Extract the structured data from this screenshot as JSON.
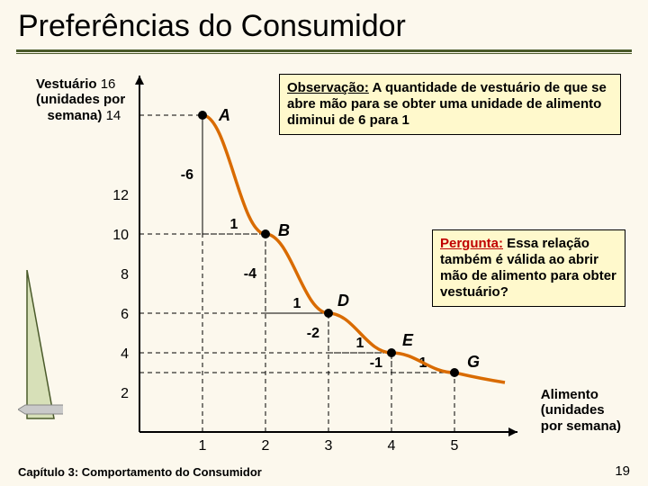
{
  "title": "Preferências do Consumidor",
  "ylabel_lines": [
    "Vestuário",
    "(unidades por",
    "semana)"
  ],
  "xlabel_lines": [
    "Alimento",
    "(unidades",
    "por semana)"
  ],
  "note": {
    "heading": "Observação:",
    "body": " A quantidade de vestuário de que se abre mão para se obter uma unidade de alimento diminui de 6 para 1"
  },
  "question": {
    "heading": "Pergunta:",
    "body": " Essa relação também é válida ao abrir mão de alimento para obter vestuário?"
  },
  "axes": {
    "x_ticks": [
      1,
      2,
      3,
      4,
      5
    ],
    "y_ticks": [
      2,
      4,
      6,
      8,
      10,
      12,
      14,
      16
    ],
    "xlim": [
      0,
      6
    ],
    "ylim": [
      0,
      18
    ]
  },
  "curve_points": [
    {
      "x": 1,
      "y": 16,
      "label": "A"
    },
    {
      "x": 2,
      "y": 10,
      "label": "B"
    },
    {
      "x": 3,
      "y": 6,
      "label": "D"
    },
    {
      "x": 4,
      "y": 4,
      "label": "E"
    },
    {
      "x": 5,
      "y": 3,
      "label": "G"
    }
  ],
  "step_labels": [
    {
      "dy": "-6",
      "dx": "1"
    },
    {
      "dy": "-4",
      "dx": "1"
    },
    {
      "dy": "-2",
      "dx": "1"
    },
    {
      "dy": "-1",
      "dx": "1"
    }
  ],
  "colors": {
    "curve": "#d96b00",
    "axis": "#000000",
    "dash": "#000000",
    "point": "#000000",
    "bg": "#fcf8ed",
    "note_bg": "#fff9cc",
    "title_line": "#4a5a2a",
    "deco_fill": "#d7e0b8",
    "deco_stroke": "#4a5a2a",
    "arrow_fill": "#c9c9c9"
  },
  "footer": "Capítulo 3: Comportamento do Consumidor",
  "page": "19",
  "fontsize": {
    "title": 34,
    "axis_tick": 16,
    "point_label": 18,
    "step": 16
  }
}
